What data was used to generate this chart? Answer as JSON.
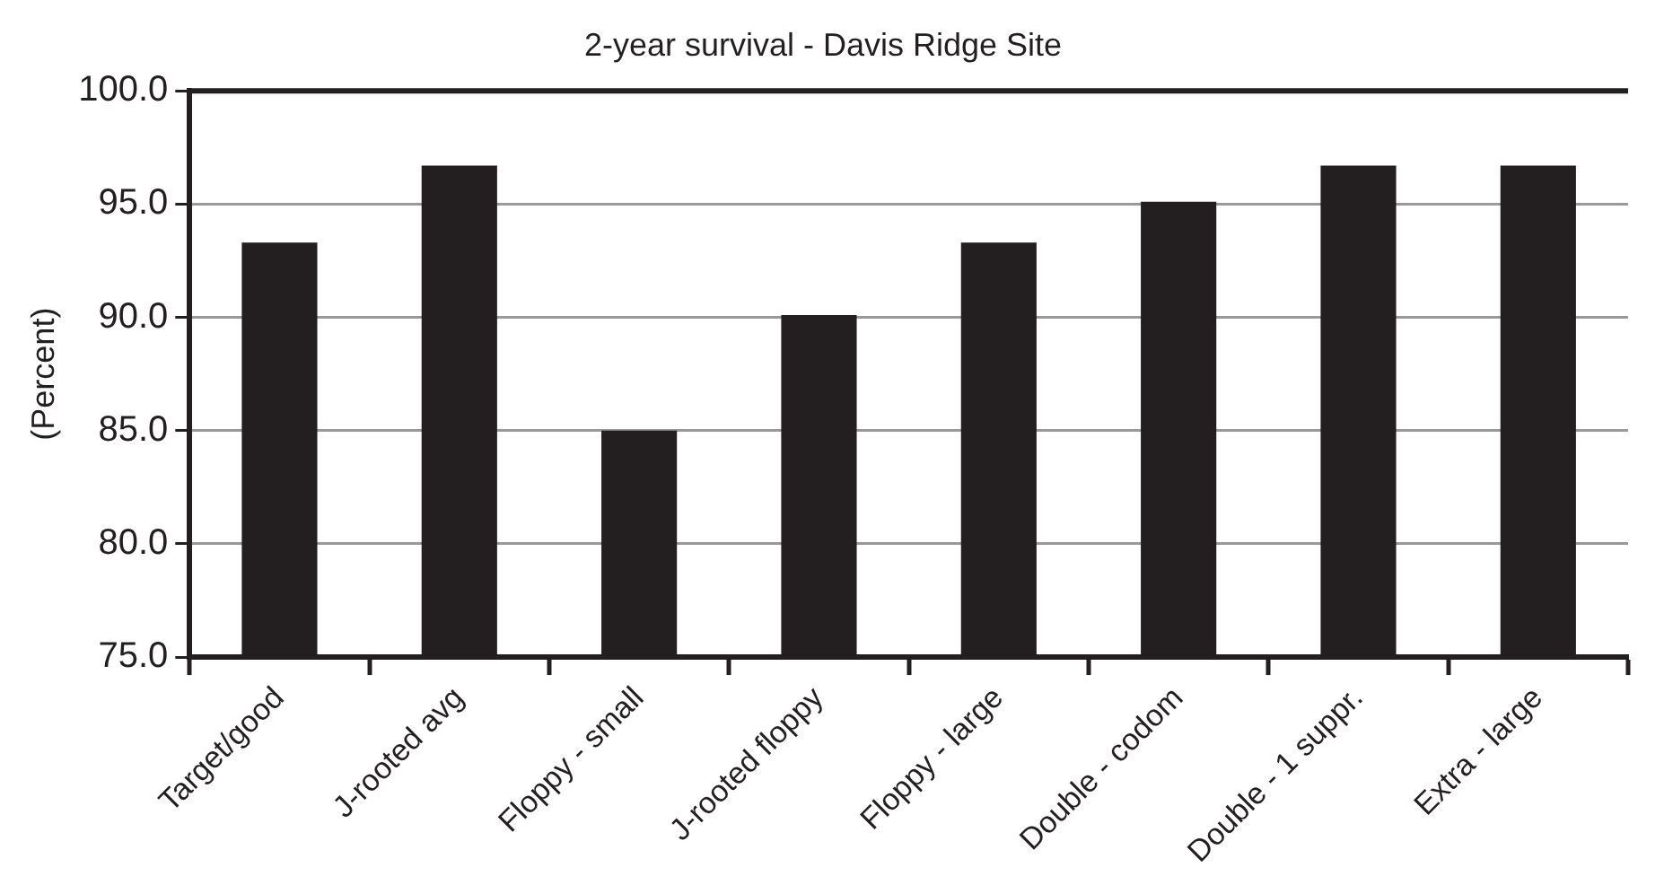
{
  "chart_data": {
    "type": "bar",
    "title": "2-year survival - Davis Ridge Site",
    "ylabel": "(Percent)",
    "categories": [
      "Target/good",
      "J-rooted avg",
      "Floppy - small",
      "J-rooted floppy",
      "Floppy - large",
      "Double - codom",
      "Double - 1 suppr.",
      "Extra - large"
    ],
    "values": [
      93.3,
      96.7,
      85.0,
      90.1,
      93.3,
      95.1,
      96.7,
      96.7
    ],
    "color": "#231f20",
    "ylim": [
      75,
      100
    ],
    "yticks": [
      {
        "value": 75,
        "label": "75.0"
      },
      {
        "value": 80,
        "label": "80.0"
      },
      {
        "value": 85,
        "label": "85.0"
      },
      {
        "value": 90,
        "label": "90.0"
      },
      {
        "value": 95,
        "label": "95.0"
      },
      {
        "value": 100,
        "label": "100.0"
      }
    ],
    "grid": "y",
    "legend": false
  }
}
